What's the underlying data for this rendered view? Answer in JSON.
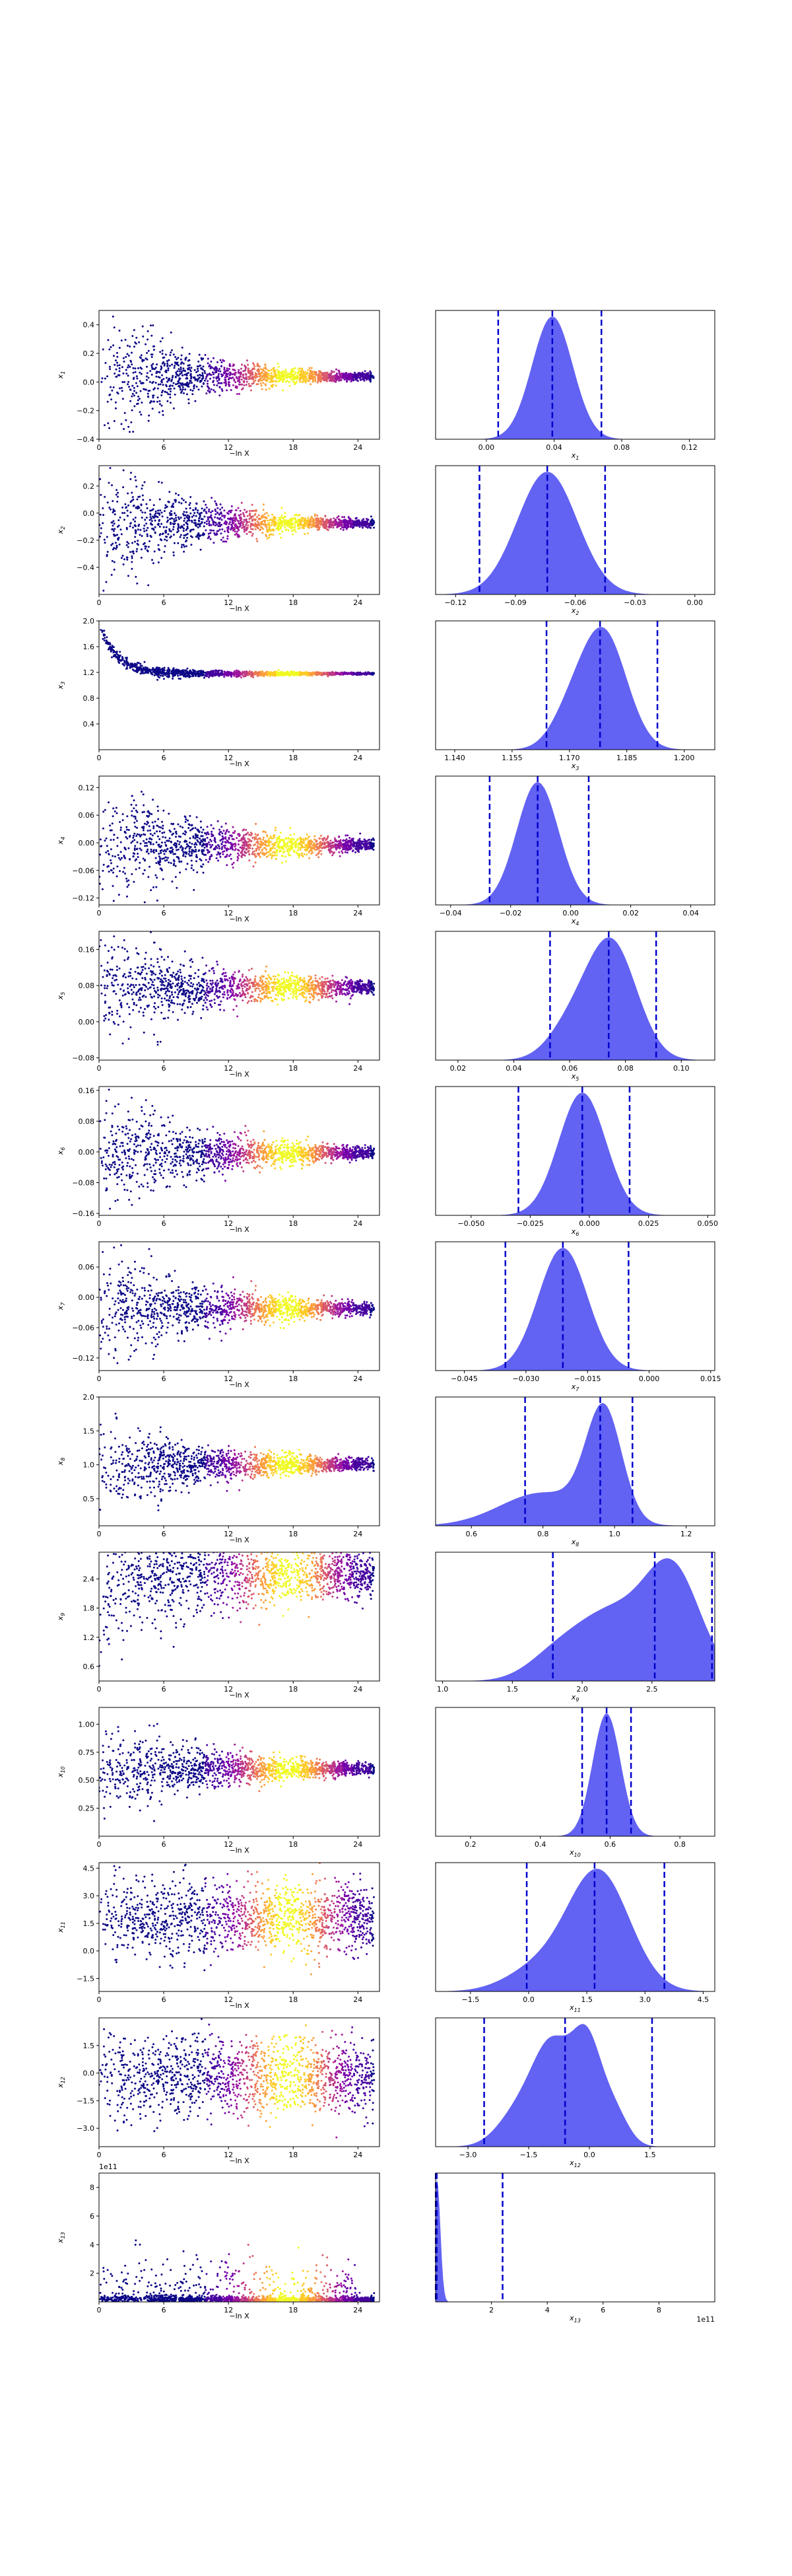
{
  "figure": {
    "scatter_xlabel": "−ln X",
    "colormap": [
      "#0d0887",
      "#46039f",
      "#7201a8",
      "#9c179e",
      "#bd3786",
      "#d8576b",
      "#ed7953",
      "#fb9f3a",
      "#fdca26",
      "#f0f921"
    ],
    "density_fill": "#2020ee",
    "density_fill_opacity": 0.7,
    "quantile_line_color": "#0000cc"
  },
  "chart_data": [
    {
      "type": "scatter",
      "param": "x1",
      "ylabel": "x",
      "ylabel_sub": "1",
      "xlim": [
        0,
        26
      ],
      "xticks": [
        0,
        6,
        12,
        18,
        24
      ],
      "ylim": [
        -0.4,
        0.5
      ],
      "yticks": [
        -0.4,
        -0.2,
        0.0,
        0.2,
        0.4
      ],
      "center": 0.04,
      "spread_start": 0.2,
      "spread_end": 0.012,
      "early_offset": 0.0,
      "outliers": 0.3
    },
    {
      "type": "area",
      "param": "x1",
      "xlabel": "x",
      "xlabel_sub": "1",
      "xlim": [
        -0.03,
        0.135
      ],
      "xticks": [
        0.0,
        0.04,
        0.08,
        0.12
      ],
      "quantiles": [
        0.007,
        0.039,
        0.068
      ],
      "peaks": [
        {
          "mu": 0.039,
          "sigma": 0.012,
          "w": 1
        }
      ]
    },
    {
      "type": "scatter",
      "param": "x2",
      "ylabel": "x",
      "ylabel_sub": "2",
      "xlim": [
        0,
        26
      ],
      "xticks": [
        0,
        6,
        12,
        18,
        24
      ],
      "ylim": [
        -0.6,
        0.35
      ],
      "yticks": [
        -0.4,
        -0.2,
        0.0,
        0.2
      ],
      "center": -0.075,
      "spread_start": 0.22,
      "spread_end": 0.015,
      "early_offset": 0.0,
      "outliers": 0.35
    },
    {
      "type": "area",
      "param": "x2",
      "xlabel": "x",
      "xlabel_sub": "2",
      "xlim": [
        -0.13,
        0.01
      ],
      "xticks": [
        -0.12,
        -0.09,
        -0.06,
        -0.03,
        0.0
      ],
      "quantiles": [
        -0.108,
        -0.074,
        -0.045
      ],
      "peaks": [
        {
          "mu": -0.074,
          "sigma": 0.015,
          "w": 1
        }
      ]
    },
    {
      "type": "scatter",
      "param": "x3",
      "ylabel": "x",
      "ylabel_sub": "3",
      "xlim": [
        0,
        26
      ],
      "xticks": [
        0,
        6,
        12,
        18,
        24
      ],
      "ylim": [
        0.0,
        2.0
      ],
      "yticks": [
        0.4,
        0.8,
        1.2,
        1.6,
        2.0
      ],
      "center": 1.18,
      "spread_start": 0.05,
      "spread_end": 0.008,
      "early_offset": 0.8,
      "outliers": 0.05
    },
    {
      "type": "area",
      "param": "x3",
      "xlabel": "x",
      "xlabel_sub": "3",
      "xlim": [
        1.135,
        1.208
      ],
      "xticks": [
        1.14,
        1.155,
        1.17,
        1.185,
        1.2
      ],
      "quantiles": [
        1.164,
        1.178,
        1.193
      ],
      "peaks": [
        {
          "mu": 1.179,
          "sigma": 0.006,
          "w": 1
        },
        {
          "mu": 1.17,
          "sigma": 0.005,
          "w": 0.25
        }
      ]
    },
    {
      "type": "scatter",
      "param": "x4",
      "ylabel": "x",
      "ylabel_sub": "4",
      "xlim": [
        0,
        26
      ],
      "xticks": [
        0,
        6,
        12,
        18,
        24
      ],
      "ylim": [
        -0.135,
        0.145
      ],
      "yticks": [
        -0.12,
        -0.06,
        0.0,
        0.06,
        0.12
      ],
      "center": -0.005,
      "spread_start": 0.06,
      "spread_end": 0.006,
      "early_offset": 0.0,
      "outliers": 0.15
    },
    {
      "type": "area",
      "param": "x4",
      "xlabel": "x",
      "xlabel_sub": "4",
      "xlim": [
        -0.045,
        0.048
      ],
      "xticks": [
        -0.04,
        -0.02,
        0.0,
        0.02,
        0.04
      ],
      "quantiles": [
        -0.027,
        -0.011,
        0.006
      ],
      "peaks": [
        {
          "mu": -0.011,
          "sigma": 0.007,
          "w": 1
        }
      ]
    },
    {
      "type": "scatter",
      "param": "x5",
      "ylabel": "x",
      "ylabel_sub": "5",
      "xlim": [
        0,
        26
      ],
      "xticks": [
        0,
        6,
        12,
        18,
        24
      ],
      "ylim": [
        -0.085,
        0.2
      ],
      "yticks": [
        -0.08,
        0.0,
        0.08,
        0.16
      ],
      "center": 0.075,
      "spread_start": 0.045,
      "spread_end": 0.008,
      "early_offset": 0.0,
      "outliers": 0.15
    },
    {
      "type": "area",
      "param": "x5",
      "xlabel": "x",
      "xlabel_sub": "5",
      "xlim": [
        0.012,
        0.112
      ],
      "xticks": [
        0.02,
        0.04,
        0.06,
        0.08,
        0.1
      ],
      "quantiles": [
        0.053,
        0.074,
        0.091
      ],
      "peaks": [
        {
          "mu": 0.075,
          "sigma": 0.009,
          "w": 1
        },
        {
          "mu": 0.06,
          "sigma": 0.008,
          "w": 0.25
        }
      ]
    },
    {
      "type": "scatter",
      "param": "x6",
      "ylabel": "x",
      "ylabel_sub": "6",
      "xlim": [
        0,
        26
      ],
      "xticks": [
        0,
        6,
        12,
        18,
        24
      ],
      "ylim": [
        -0.165,
        0.17
      ],
      "yticks": [
        -0.16,
        -0.08,
        0.0,
        0.08,
        0.16
      ],
      "center": -0.003,
      "spread_start": 0.06,
      "spread_end": 0.008,
      "early_offset": 0.0,
      "outliers": 0.15
    },
    {
      "type": "area",
      "param": "x6",
      "xlabel": "x",
      "xlabel_sub": "6",
      "xlim": [
        -0.065,
        0.053
      ],
      "xticks": [
        -0.05,
        -0.025,
        0.0,
        0.025,
        0.05
      ],
      "quantiles": [
        -0.03,
        -0.003,
        0.017
      ],
      "peaks": [
        {
          "mu": -0.003,
          "sigma": 0.01,
          "w": 1
        }
      ]
    },
    {
      "type": "scatter",
      "param": "x7",
      "ylabel": "x",
      "ylabel_sub": "7",
      "xlim": [
        0,
        26
      ],
      "xticks": [
        0,
        6,
        12,
        18,
        24
      ],
      "ylim": [
        -0.145,
        0.11
      ],
      "yticks": [
        -0.12,
        -0.06,
        0.0,
        0.06
      ],
      "center": -0.022,
      "spread_start": 0.05,
      "spread_end": 0.006,
      "early_offset": 0.0,
      "outliers": 0.15
    },
    {
      "type": "area",
      "param": "x7",
      "xlabel": "x",
      "xlabel_sub": "7",
      "xlim": [
        -0.052,
        0.016
      ],
      "xticks": [
        -0.045,
        -0.03,
        -0.015,
        0.0,
        0.015
      ],
      "quantiles": [
        -0.035,
        -0.021,
        -0.005
      ],
      "peaks": [
        {
          "mu": -0.021,
          "sigma": 0.006,
          "w": 1
        }
      ]
    },
    {
      "type": "scatter",
      "param": "x8",
      "ylabel": "x",
      "ylabel_sub": "8",
      "xlim": [
        0,
        26
      ],
      "xticks": [
        0,
        6,
        12,
        18,
        24
      ],
      "ylim": [
        0.1,
        2.0
      ],
      "yticks": [
        0.5,
        1.0,
        1.5,
        2.0
      ],
      "center": 1.0,
      "spread_start": 0.32,
      "spread_end": 0.04,
      "early_offset": 0.1,
      "outliers": 0.6
    },
    {
      "type": "area",
      "param": "x8",
      "xlabel": "x",
      "xlabel_sub": "8",
      "xlim": [
        0.5,
        1.28
      ],
      "xticks": [
        0.6,
        0.8,
        1.0,
        1.2
      ],
      "quantiles": [
        0.75,
        0.96,
        1.05
      ],
      "peaks": [
        {
          "mu": 0.97,
          "sigma": 0.05,
          "w": 1
        },
        {
          "mu": 0.8,
          "sigma": 0.12,
          "w": 0.3
        }
      ]
    },
    {
      "type": "scatter",
      "param": "x9",
      "ylabel": "x",
      "ylabel_sub": "9",
      "xlim": [
        0,
        26
      ],
      "xticks": [
        0,
        6,
        12,
        18,
        24
      ],
      "ylim": [
        0.3,
        2.95
      ],
      "yticks": [
        0.6,
        1.2,
        1.8,
        2.4
      ],
      "center": 2.5,
      "spread_start": 0.6,
      "spread_end": 0.22,
      "early_offset": -0.7,
      "outliers": 0.8
    },
    {
      "type": "area",
      "param": "x9",
      "xlabel": "x",
      "xlabel_sub": "9",
      "xlim": [
        0.95,
        2.95
      ],
      "xticks": [
        1.0,
        1.5,
        2.0,
        2.5
      ],
      "quantiles": [
        1.79,
        2.52,
        2.93
      ],
      "peaks": [
        {
          "mu": 2.65,
          "sigma": 0.2,
          "w": 1
        },
        {
          "mu": 2.2,
          "sigma": 0.25,
          "w": 0.6
        },
        {
          "mu": 1.8,
          "sigma": 0.2,
          "w": 0.2
        }
      ]
    },
    {
      "type": "scatter",
      "param": "x10",
      "ylabel": "x",
      "ylabel_sub": "10",
      "xlim": [
        0,
        26
      ],
      "xticks": [
        0,
        6,
        12,
        18,
        24
      ],
      "ylim": [
        0.0,
        1.15
      ],
      "yticks": [
        0.25,
        0.5,
        0.75,
        1.0
      ],
      "center": 0.6,
      "spread_start": 0.2,
      "spread_end": 0.025,
      "early_offset": -0.1,
      "outliers": 0.35
    },
    {
      "type": "area",
      "param": "x10",
      "xlabel": "x",
      "xlabel_sub": "10",
      "xlim": [
        0.1,
        0.9
      ],
      "xticks": [
        0.2,
        0.4,
        0.6,
        0.8
      ],
      "quantiles": [
        0.52,
        0.59,
        0.66
      ],
      "peaks": [
        {
          "mu": 0.59,
          "sigma": 0.04,
          "w": 1
        }
      ]
    },
    {
      "type": "scatter",
      "param": "x11",
      "ylabel": "x",
      "ylabel_sub": "11",
      "xlim": [
        0,
        26
      ],
      "xticks": [
        0,
        6,
        12,
        18,
        24
      ],
      "ylim": [
        -2.2,
        4.8
      ],
      "yticks": [
        -1.5,
        0.0,
        1.5,
        3.0,
        4.5
      ],
      "center": 1.8,
      "spread_start": 1.0,
      "spread_end": 0.9,
      "early_offset": 0.0,
      "outliers": 1.5
    },
    {
      "type": "area",
      "param": "x11",
      "xlabel": "x",
      "xlabel_sub": "11",
      "xlim": [
        -2.4,
        4.8
      ],
      "xticks": [
        -1.5,
        0.0,
        1.5,
        3.0,
        4.5
      ],
      "quantiles": [
        -0.05,
        1.7,
        3.5
      ],
      "peaks": [
        {
          "mu": 1.8,
          "sigma": 0.8,
          "w": 1
        },
        {
          "mu": 0.2,
          "sigma": 0.8,
          "w": 0.18
        }
      ]
    },
    {
      "type": "scatter",
      "param": "x12",
      "ylabel": "x",
      "ylabel_sub": "12",
      "xlim": [
        0,
        26
      ],
      "xticks": [
        0,
        6,
        12,
        18,
        24
      ],
      "ylim": [
        -4.0,
        3.0
      ],
      "yticks": [
        -3.0,
        -1.5,
        0.0,
        1.5
      ],
      "center": -0.2,
      "spread_start": 1.1,
      "spread_end": 1.0,
      "early_offset": 0.0,
      "outliers": 1.5
    },
    {
      "type": "area",
      "param": "x12",
      "xlabel": "x",
      "xlabel_sub": "12",
      "xlim": [
        -3.8,
        3.1
      ],
      "xticks": [
        -3.0,
        -1.5,
        0.0,
        1.5
      ],
      "quantiles": [
        -2.6,
        -0.6,
        1.55
      ],
      "peaks": [
        {
          "mu": -0.9,
          "sigma": 0.5,
          "w": 1
        },
        {
          "mu": -0.05,
          "sigma": 0.35,
          "w": 0.9
        },
        {
          "mu": 0.6,
          "sigma": 0.35,
          "w": 0.35
        },
        {
          "mu": -1.8,
          "sigma": 0.5,
          "w": 0.3
        }
      ]
    },
    {
      "type": "scatter",
      "param": "x13",
      "ylabel": "x",
      "ylabel_sub": "13",
      "xlim": [
        0,
        26
      ],
      "xticks": [
        0,
        6,
        12,
        18,
        24
      ],
      "ylim": [
        0.0,
        9.0
      ],
      "yticks": [
        2,
        4,
        6,
        8
      ],
      "offset_text": "1e11",
      "center": 0.3,
      "spread_start": 0.4,
      "spread_end": 0.3,
      "early_offset": 0.0,
      "outliers": 4.0,
      "positive": true
    },
    {
      "type": "area",
      "param": "x13",
      "xlabel": "x",
      "xlabel_sub": "13",
      "xlim": [
        0.0,
        10.0
      ],
      "xticks": [
        2,
        4,
        6,
        8
      ],
      "offset_text": "1e11",
      "quantiles": [
        0.005,
        0.04,
        2.4
      ],
      "peaks": [
        {
          "mu": 0.05,
          "sigma": 0.12,
          "w": 1
        }
      ]
    }
  ]
}
